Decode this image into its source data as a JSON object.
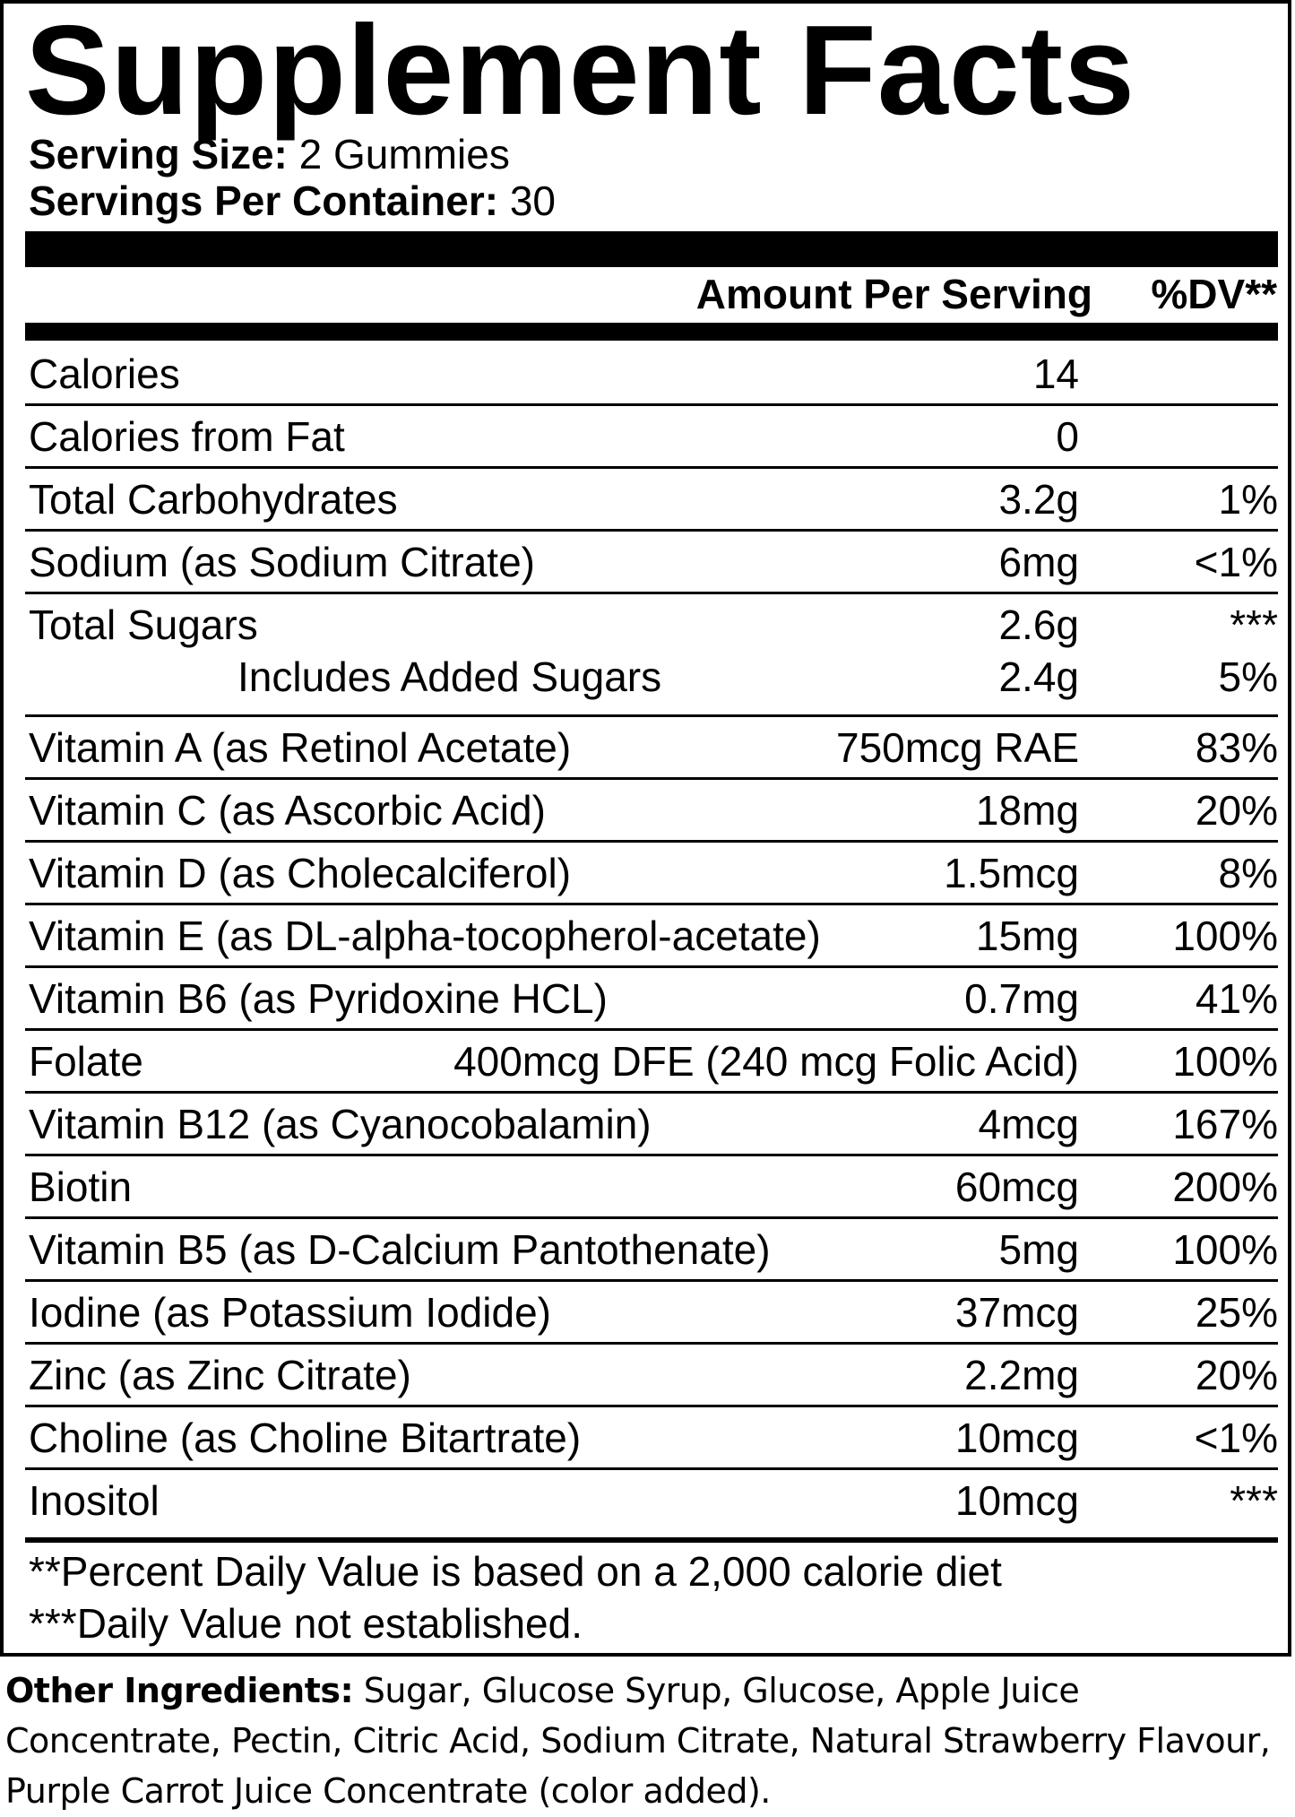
{
  "header": {
    "title": "Supplement Facts",
    "serving_size": {
      "label": "Serving Size:",
      "value": "2 Gummies"
    },
    "servings_per_container": {
      "label": "Servings Per Container:",
      "value": "30"
    }
  },
  "table": {
    "columns": [
      "Amount Per Serving",
      "%DV**"
    ],
    "rows": [
      {
        "name": "Calories",
        "amount": "14"
      },
      {
        "name": "Calories from Fat",
        "amount": "0"
      },
      {
        "name": "Total Carbohydrates",
        "amount": "3.2g",
        "dv": "1%"
      },
      {
        "name": "Sodium (as Sodium Citrate)",
        "amount": "6mg",
        "dv": "<1%"
      },
      {
        "name": "Total Sugars",
        "amount": "2.6g",
        "dv": "***",
        "sub": [
          {
            "name": "Includes Added Sugars",
            "amount": "2.4g",
            "dv": "5%"
          }
        ]
      },
      {
        "name": "Vitamin A (as Retinol Acetate)",
        "amount": "750mcg RAE",
        "dv": "83%"
      },
      {
        "name": "Vitamin C (as Ascorbic Acid)",
        "amount": "18mg",
        "dv": "20%"
      },
      {
        "name": "Vitamin D (as Cholecalciferol)",
        "amount": "1.5mcg",
        "dv": "8%"
      },
      {
        "name": "Vitamin E (as DL-alpha-tocopherol-acetate)",
        "amount": "15mg",
        "dv": "100%"
      },
      {
        "name": "Vitamin B6 (as Pyridoxine HCL)",
        "amount": "0.7mg",
        "dv": "41%"
      },
      {
        "name": "Folate",
        "amount": "400mcg DFE (240 mcg Folic Acid)",
        "dv": "100%"
      },
      {
        "name": "Vitamin B12 (as Cyanocobalamin)",
        "amount": "4mcg",
        "dv": "167%"
      },
      {
        "name": "Biotin",
        "amount": "60mcg",
        "dv": "200%"
      },
      {
        "name": "Vitamin B5 (as D-Calcium Pantothenate)",
        "amount": "5mg",
        "dv": "100%"
      },
      {
        "name": "Iodine (as Potassium Iodide)",
        "amount": "37mcg",
        "dv": "25%"
      },
      {
        "name": "Zinc (as Zinc Citrate)",
        "amount": "2.2mg",
        "dv": "20%"
      },
      {
        "name": "Choline (as Choline Bitartrate)",
        "amount": "10mcg",
        "dv": "<1%"
      },
      {
        "name": "Inositol",
        "amount": "10mcg",
        "dv": "***"
      }
    ]
  },
  "footnotes": [
    "**Percent Daily Value is based on a 2,000 calorie diet",
    "***Daily Value not established."
  ],
  "other_ingredients": {
    "label": "Other Ingredients:",
    "text": "Sugar, Glucose Syrup, Glucose, Apple Juice Concentrate, Pectin, Citric Acid, Sodium Citrate, Natural Strawberry Flavour, Purple Carrot Juice Concentrate (color added)."
  }
}
